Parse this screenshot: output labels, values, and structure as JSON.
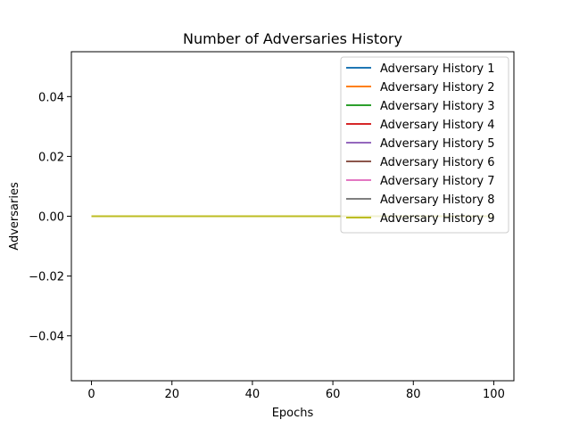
{
  "chart_data": {
    "type": "line",
    "title": "Number of Adversaries History",
    "xlabel": "Epochs",
    "ylabel": "Adversaries",
    "xlim": [
      -5,
      105
    ],
    "ylim": [
      -0.055,
      0.055
    ],
    "xticks": [
      0,
      20,
      40,
      60,
      80,
      100
    ],
    "yticks": [
      -0.04,
      -0.02,
      0.0,
      0.02,
      0.04
    ],
    "ytick_labels": [
      "−0.04",
      "−0.02",
      "0.00",
      "0.02",
      "0.04"
    ],
    "x": [
      0,
      100
    ],
    "grid": false,
    "legend_position": "top-right",
    "series": [
      {
        "name": "Adversary History 1",
        "color": "#1f77b4",
        "values": [
          0,
          0
        ]
      },
      {
        "name": "Adversary History 2",
        "color": "#ff7f0e",
        "values": [
          0,
          0
        ]
      },
      {
        "name": "Adversary History 3",
        "color": "#2ca02c",
        "values": [
          0,
          0
        ]
      },
      {
        "name": "Adversary History 4",
        "color": "#d62728",
        "values": [
          0,
          0
        ]
      },
      {
        "name": "Adversary History 5",
        "color": "#9467bd",
        "values": [
          0,
          0
        ]
      },
      {
        "name": "Adversary History 6",
        "color": "#8c564b",
        "values": [
          0,
          0
        ]
      },
      {
        "name": "Adversary History 7",
        "color": "#e377c2",
        "values": [
          0,
          0
        ]
      },
      {
        "name": "Adversary History 8",
        "color": "#7f7f7f",
        "values": [
          0,
          0
        ]
      },
      {
        "name": "Adversary History 9",
        "color": "#bcbd22",
        "values": [
          0,
          0
        ]
      }
    ]
  }
}
